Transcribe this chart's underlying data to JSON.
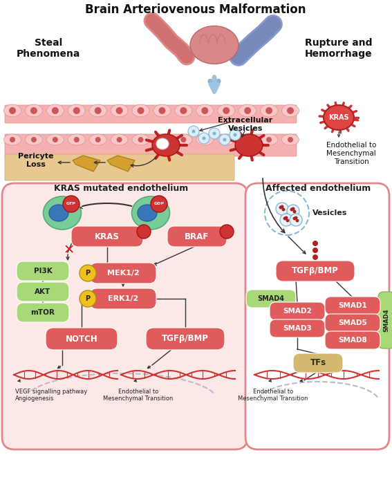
{
  "title": "Brain Arteriovenous Malformation",
  "steal_text": "Steal\nPhenomena",
  "rupture_text": "Rupture and\nHemorrhage",
  "kras_mutated_label": "KRAS mutated endothelium",
  "affected_label": "Affected endothelium",
  "extracellular_vesicles": "Extracellular\nVesicles",
  "pericyte_loss": "Pericyte\nLoss",
  "endothelial_to_mesen1": "Endothelial to\nMesenchymal\nTransition",
  "vesicles_label": "Vesicles",
  "vegf_text": "VEGF signalling pathway\nAngiogenesis",
  "endothelial_mesen_text": "Endothelial to\nMesenchymal Transition",
  "endothelial_mesen_text2": "Endothelial to\nMesenchymal Transition",
  "red_color": "#e05c5c",
  "green_color": "#a8d878",
  "yellow_color": "#f0c020",
  "tan_color": "#d4b870",
  "bg_pink_light": "#fde8e8",
  "bg_white": "#ffffff"
}
